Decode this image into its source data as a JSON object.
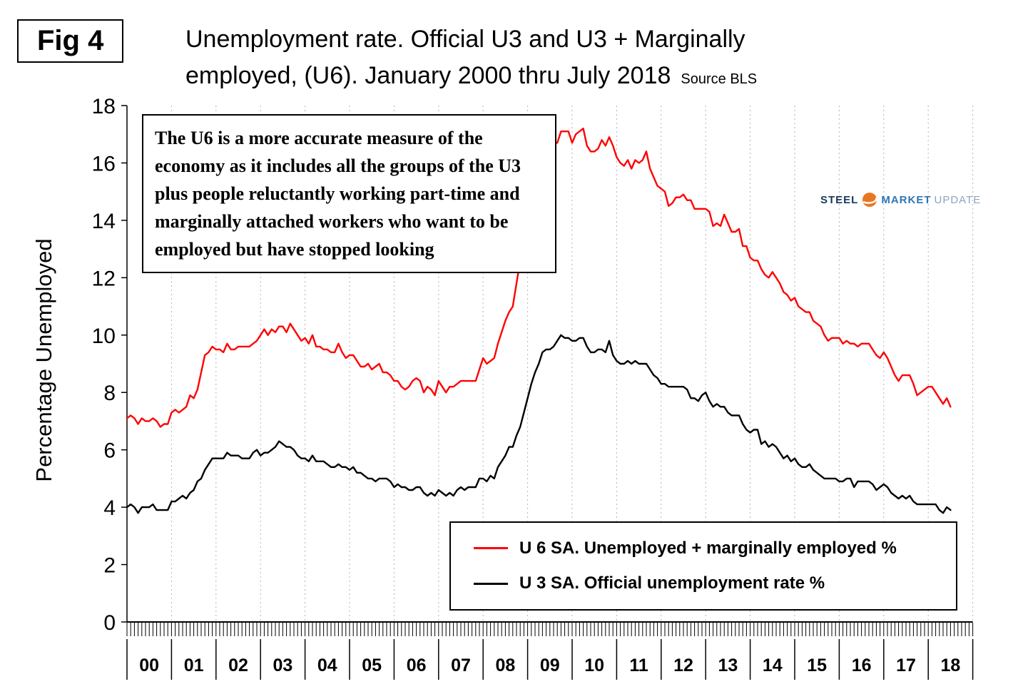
{
  "header": {
    "fig_label": "Fig 4",
    "title_line1": "Unemployment rate. Official U3 and U3 + Marginally",
    "title_line2": "employed, (U6). January 2000 thru July 2018",
    "source": "Source BLS"
  },
  "annotation": "The U6 is a more accurate measure of the economy as it includes all the groups of the U3 plus people reluctantly working part-time and marginally attached workers who want to be employed but have stopped looking",
  "logo": {
    "word1": "STEEL",
    "word2": "MARKET",
    "word3": "UPDATE",
    "navy": "#17375e",
    "blue": "#2e75b6",
    "gray": "#8fa3bf",
    "orange": "#e87722"
  },
  "chart_data": {
    "type": "line",
    "title": "Unemployment rate. Official U3 and U3 + Marginally employed, (U6). January 2000 thru July 2018",
    "ylabel": "Percentage Unemployed",
    "ylim": [
      0,
      18
    ],
    "ytick_step": 2,
    "x_start": "2000-01",
    "x_end": "2018-07",
    "grid": "vertical-dotted-yearly",
    "legend_position": "bottom-right-box",
    "year_labels": [
      "00",
      "01",
      "02",
      "03",
      "04",
      "05",
      "06",
      "07",
      "08",
      "09",
      "10",
      "11",
      "12",
      "13",
      "14",
      "15",
      "16",
      "17",
      "18"
    ],
    "series": [
      {
        "name": "U 6 SA. Unemployed + marginally employed %",
        "color": "#ff0000",
        "values": [
          7.1,
          7.2,
          7.1,
          6.9,
          7.1,
          7.0,
          7.0,
          7.1,
          7.0,
          6.8,
          6.9,
          6.9,
          7.3,
          7.4,
          7.3,
          7.4,
          7.5,
          7.9,
          7.8,
          8.1,
          8.7,
          9.3,
          9.4,
          9.6,
          9.5,
          9.5,
          9.4,
          9.7,
          9.5,
          9.5,
          9.6,
          9.6,
          9.6,
          9.6,
          9.7,
          9.8,
          10.0,
          10.2,
          10.0,
          10.2,
          10.1,
          10.3,
          10.3,
          10.1,
          10.4,
          10.2,
          10.0,
          9.8,
          9.9,
          9.7,
          10.0,
          9.6,
          9.6,
          9.5,
          9.5,
          9.4,
          9.4,
          9.7,
          9.4,
          9.2,
          9.3,
          9.3,
          9.1,
          8.9,
          8.9,
          9.0,
          8.8,
          8.9,
          9.0,
          8.7,
          8.7,
          8.6,
          8.4,
          8.4,
          8.2,
          8.1,
          8.2,
          8.4,
          8.5,
          8.4,
          8.0,
          8.2,
          8.1,
          7.9,
          8.4,
          8.2,
          8.0,
          8.2,
          8.2,
          8.3,
          8.4,
          8.4,
          8.4,
          8.4,
          8.4,
          8.8,
          9.2,
          9.0,
          9.1,
          9.2,
          9.7,
          10.1,
          10.5,
          10.8,
          11.0,
          11.8,
          12.6,
          13.6,
          14.2,
          15.2,
          15.8,
          15.9,
          16.5,
          16.5,
          16.4,
          16.7,
          16.7,
          17.1,
          17.1,
          17.1,
          16.7,
          17.0,
          17.1,
          17.2,
          16.6,
          16.4,
          16.4,
          16.5,
          16.8,
          16.6,
          16.9,
          16.6,
          16.2,
          16.0,
          15.9,
          16.1,
          15.8,
          16.1,
          16.0,
          16.1,
          16.4,
          15.8,
          15.5,
          15.2,
          15.1,
          15.0,
          14.5,
          14.6,
          14.8,
          14.8,
          14.9,
          14.7,
          14.7,
          14.4,
          14.4,
          14.4,
          14.4,
          14.3,
          13.8,
          13.9,
          13.8,
          14.2,
          13.9,
          13.6,
          13.6,
          13.7,
          13.1,
          13.1,
          12.7,
          12.6,
          12.6,
          12.3,
          12.1,
          12.0,
          12.2,
          12.0,
          11.8,
          11.5,
          11.4,
          11.2,
          11.3,
          11.0,
          10.9,
          10.8,
          10.8,
          10.5,
          10.4,
          10.3,
          10.0,
          9.8,
          9.9,
          9.9,
          9.9,
          9.7,
          9.8,
          9.7,
          9.7,
          9.6,
          9.7,
          9.7,
          9.7,
          9.5,
          9.3,
          9.2,
          9.4,
          9.2,
          8.9,
          8.6,
          8.4,
          8.6,
          8.6,
          8.6,
          8.3,
          7.9,
          8.0,
          8.1,
          8.2,
          8.2,
          8.0,
          7.8,
          7.6,
          7.8,
          7.5
        ]
      },
      {
        "name": "U 3 SA. Official unemployment rate %",
        "color": "#000000",
        "values": [
          4.0,
          4.1,
          4.0,
          3.8,
          4.0,
          4.0,
          4.0,
          4.1,
          3.9,
          3.9,
          3.9,
          3.9,
          4.2,
          4.2,
          4.3,
          4.4,
          4.3,
          4.5,
          4.6,
          4.9,
          5.0,
          5.3,
          5.5,
          5.7,
          5.7,
          5.7,
          5.7,
          5.9,
          5.8,
          5.8,
          5.8,
          5.7,
          5.7,
          5.7,
          5.9,
          6.0,
          5.8,
          5.9,
          5.9,
          6.0,
          6.1,
          6.3,
          6.2,
          6.1,
          6.1,
          6.0,
          5.8,
          5.7,
          5.7,
          5.6,
          5.8,
          5.6,
          5.6,
          5.6,
          5.5,
          5.4,
          5.4,
          5.5,
          5.4,
          5.4,
          5.3,
          5.4,
          5.2,
          5.2,
          5.1,
          5.0,
          5.0,
          4.9,
          5.0,
          5.0,
          5.0,
          4.9,
          4.7,
          4.8,
          4.7,
          4.7,
          4.6,
          4.6,
          4.7,
          4.7,
          4.5,
          4.4,
          4.5,
          4.4,
          4.6,
          4.5,
          4.4,
          4.5,
          4.4,
          4.6,
          4.7,
          4.6,
          4.7,
          4.7,
          4.7,
          5.0,
          5.0,
          4.9,
          5.1,
          5.0,
          5.4,
          5.6,
          5.8,
          6.1,
          6.1,
          6.5,
          6.8,
          7.3,
          7.8,
          8.3,
          8.7,
          9.0,
          9.4,
          9.5,
          9.5,
          9.6,
          9.8,
          10.0,
          9.9,
          9.9,
          9.8,
          9.8,
          9.9,
          9.9,
          9.6,
          9.4,
          9.4,
          9.5,
          9.5,
          9.4,
          9.8,
          9.3,
          9.1,
          9.0,
          9.0,
          9.1,
          9.0,
          9.1,
          9.0,
          9.0,
          9.0,
          8.8,
          8.6,
          8.5,
          8.3,
          8.3,
          8.2,
          8.2,
          8.2,
          8.2,
          8.2,
          8.1,
          7.8,
          7.8,
          7.7,
          7.9,
          8.0,
          7.7,
          7.5,
          7.6,
          7.5,
          7.5,
          7.3,
          7.2,
          7.2,
          7.2,
          6.9,
          6.7,
          6.6,
          6.7,
          6.7,
          6.2,
          6.3,
          6.1,
          6.2,
          6.1,
          5.9,
          5.7,
          5.8,
          5.6,
          5.7,
          5.5,
          5.4,
          5.4,
          5.5,
          5.3,
          5.2,
          5.1,
          5.0,
          5.0,
          5.0,
          5.0,
          4.9,
          4.9,
          5.0,
          5.0,
          4.7,
          4.9,
          4.9,
          4.9,
          4.9,
          4.8,
          4.6,
          4.7,
          4.8,
          4.7,
          4.5,
          4.4,
          4.3,
          4.4,
          4.3,
          4.4,
          4.2,
          4.1,
          4.1,
          4.1,
          4.1,
          4.1,
          4.1,
          3.9,
          3.8,
          4.0,
          3.9
        ]
      }
    ]
  }
}
